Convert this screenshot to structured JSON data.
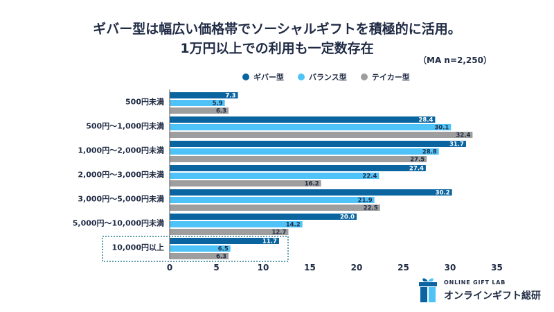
{
  "title_line1": "ギバー型は幅広い価格帯でソーシャルギフトを積極的に活用。",
  "title_line2": "1万円以上での利用も一定数存在",
  "sample_note": "（MA n=2,250）",
  "brand": {
    "en": "ONLINE GIFT LAB",
    "ja": "オンラインギフト総研",
    "icon": "gift-box-icon"
  },
  "colors": {
    "giver": "#0a64a0",
    "balance": "#4fc3f7",
    "taker": "#9e9e9e",
    "highlight_border": "#2a7f8f"
  },
  "chart_data": {
    "type": "bar",
    "orientation": "horizontal",
    "categories": [
      "500円未満",
      "500円〜1,000円未満",
      "1,000円〜2,000円未満",
      "2,000円〜3,000円未満",
      "3,000円〜5,000円未満",
      "5,000円〜10,000円未満",
      "10,000円以上"
    ],
    "series": [
      {
        "name": "ギバー型",
        "color": "#0a64a0",
        "values": [
          7.3,
          28.4,
          31.7,
          27.4,
          30.2,
          20.0,
          11.7
        ]
      },
      {
        "name": "バランス型",
        "color": "#4fc3f7",
        "values": [
          5.9,
          30.1,
          28.8,
          22.4,
          21.9,
          14.2,
          6.5
        ]
      },
      {
        "name": "テイカー型",
        "color": "#9e9e9e",
        "values": [
          6.3,
          32.4,
          27.5,
          16.2,
          22.5,
          12.7,
          6.3
        ]
      }
    ],
    "value_labels": [
      [
        "7.3",
        "5.9",
        "6.3"
      ],
      [
        "28.4",
        "30.1",
        "32.4"
      ],
      [
        "31.7",
        "28.8",
        "27.5"
      ],
      [
        "27.4",
        "22.4",
        "16.2"
      ],
      [
        "30.2",
        "21.9",
        "22.5"
      ],
      [
        "20.0",
        "14.2",
        "12.7"
      ],
      [
        "11.7",
        "6.5",
        "6.3"
      ]
    ],
    "xlim": [
      0,
      35
    ],
    "xticks": [
      0,
      5,
      10,
      15,
      20,
      25,
      30,
      35
    ],
    "legend_position": "top-center",
    "grid": false,
    "highlighted_category": "10,000円以上"
  }
}
